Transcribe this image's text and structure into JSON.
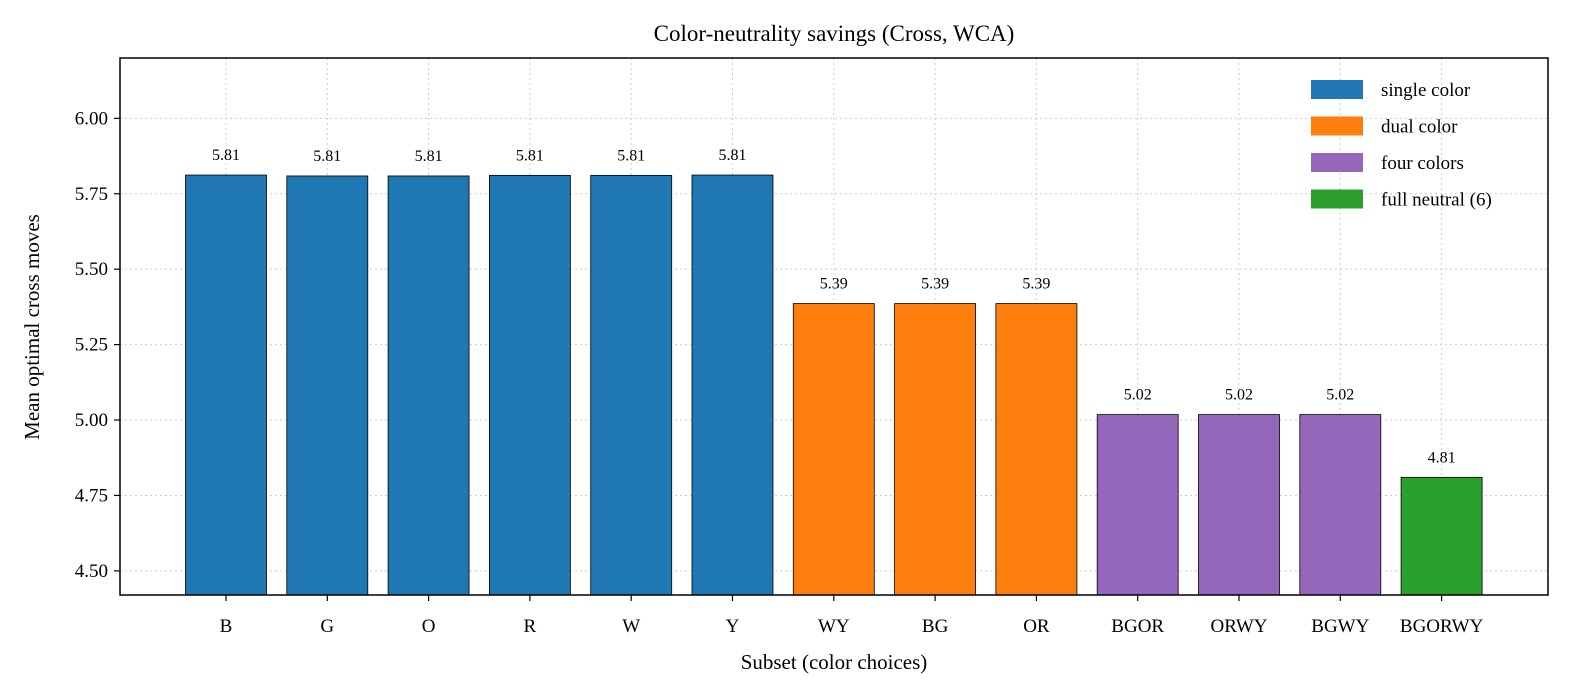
{
  "chart_data": {
    "type": "bar",
    "title": "Color-neutrality savings (Cross, WCA)",
    "xlabel": "Subset (color choices)",
    "ylabel": "Mean optimal cross moves",
    "ylim": [
      4.42,
      6.2
    ],
    "yticks": [
      "4.50",
      "4.75",
      "5.00",
      "5.25",
      "5.50",
      "5.75",
      "6.00"
    ],
    "grid": true,
    "legend_position": "top-right",
    "categories": [
      "B",
      "G",
      "O",
      "R",
      "W",
      "Y",
      "WY",
      "BG",
      "OR",
      "BGOR",
      "ORWY",
      "BGWY",
      "BGORWY"
    ],
    "values": [
      5.812,
      5.809,
      5.809,
      5.811,
      5.811,
      5.812,
      5.386,
      5.386,
      5.386,
      5.018,
      5.018,
      5.018,
      4.81
    ],
    "data_labels": [
      "5.81",
      "5.81",
      "5.81",
      "5.81",
      "5.81",
      "5.81",
      "5.39",
      "5.39",
      "5.39",
      "5.02",
      "5.02",
      "5.02",
      "4.81"
    ],
    "groups": [
      "single",
      "single",
      "single",
      "single",
      "single",
      "single",
      "dual",
      "dual",
      "dual",
      "four",
      "four",
      "four",
      "full"
    ],
    "legend": [
      {
        "key": "single",
        "label": "single color",
        "color": "#1f77b4"
      },
      {
        "key": "dual",
        "label": "dual color",
        "color": "#ff7f0e"
      },
      {
        "key": "four",
        "label": "four colors",
        "color": "#9467bd"
      },
      {
        "key": "full",
        "label": "full neutral (6)",
        "color": "#2ca02c"
      }
    ]
  }
}
